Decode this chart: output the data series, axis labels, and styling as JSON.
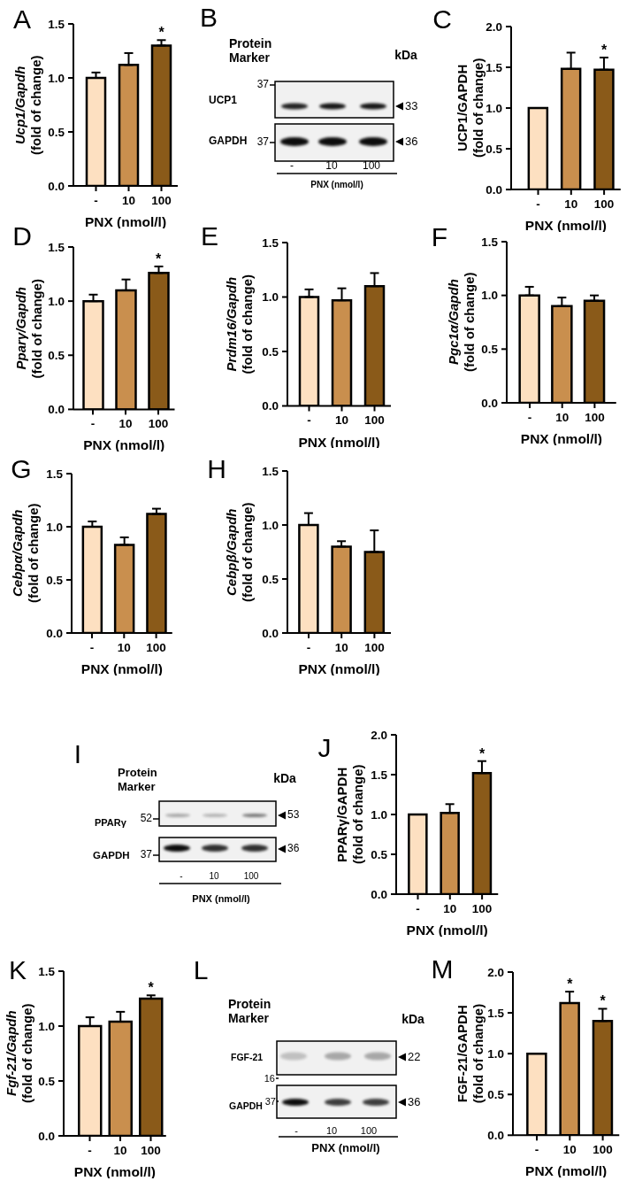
{
  "chart_data": [
    {
      "type": "bar",
      "title": "A",
      "categories": [
        "-",
        "10",
        "100"
      ],
      "values": [
        1.0,
        1.12,
        1.3
      ],
      "colors": [
        "#fde0c1",
        "#c98f4e",
        "#8a5a19"
      ],
      "errors": [
        [
          1.0,
          1.05
        ],
        [
          1.12,
          1.23
        ],
        [
          1.3,
          1.35
        ]
      ],
      "ylabel": "Ucp1/Gapdh\n(fold of change)",
      "xlabel": "PNX (nmol/l)",
      "ylim": [
        0,
        1.5
      ],
      "yticks": [
        {
          "value": 0,
          "label": "0.0"
        },
        {
          "value": 0.5,
          "label": "0.5"
        },
        {
          "value": 1,
          "label": "1.0"
        },
        {
          "value": 1.5,
          "label": "1.5"
        }
      ],
      "annotations": [
        {
          "text": "*",
          "x": "100",
          "y": 1.35
        }
      ]
    },
    {
      "type": "other",
      "title": "B",
      "categories": [
        "-",
        "10",
        "100"
      ],
      "xlabel": "PNX (nmol/l)",
      "annotations": [
        "Protein Marker",
        "kDa",
        "UCP1",
        "GAPDH",
        "37",
        "37",
        "33",
        "36"
      ]
    },
    {
      "type": "bar",
      "title": "C",
      "categories": [
        "-",
        "10",
        "100"
      ],
      "values": [
        1.0,
        1.48,
        1.47
      ],
      "colors": [
        "#fde0c1",
        "#c98f4e",
        "#8a5a19"
      ],
      "errors": [
        null,
        [
          1.48,
          1.68
        ],
        [
          1.47,
          1.62
        ]
      ],
      "ylabel": "UCP1/GAPDH\n(fold of change)",
      "xlabel": "PNX (nmol/l)",
      "ylim": [
        0,
        2
      ],
      "yticks": [
        {
          "value": 0,
          "label": "0.0"
        },
        {
          "value": 0.5,
          "label": "0.5"
        },
        {
          "value": 1,
          "label": "1.0"
        },
        {
          "value": 1.5,
          "label": "1.5"
        },
        {
          "value": 2,
          "label": "2.0"
        }
      ],
      "annotations": [
        {
          "text": "*",
          "x": "100",
          "y": 1.62
        }
      ]
    },
    {
      "type": "bar",
      "title": "D",
      "categories": [
        "-",
        "10",
        "100"
      ],
      "values": [
        1.0,
        1.1,
        1.26
      ],
      "colors": [
        "#fde0c1",
        "#c98f4e",
        "#8a5a19"
      ],
      "errors": [
        [
          1.0,
          1.06
        ],
        [
          1.1,
          1.2
        ],
        [
          1.26,
          1.32
        ]
      ],
      "ylabel": "Pparγ/Gapdh\n(fold of change)",
      "xlabel": "PNX (nmol/l)",
      "ylim": [
        0,
        1.5
      ],
      "yticks": [
        {
          "value": 0,
          "label": "0.0"
        },
        {
          "value": 0.5,
          "label": "0.5"
        },
        {
          "value": 1,
          "label": "1.0"
        },
        {
          "value": 1.5,
          "label": "1.5"
        }
      ],
      "annotations": [
        {
          "text": "*",
          "x": "100",
          "y": 1.32
        }
      ]
    },
    {
      "type": "bar",
      "title": "E",
      "categories": [
        "-",
        "10",
        "100"
      ],
      "values": [
        1.0,
        0.97,
        1.1
      ],
      "colors": [
        "#fde0c1",
        "#c98f4e",
        "#8a5a19"
      ],
      "errors": [
        [
          1.0,
          1.07
        ],
        [
          0.97,
          1.08
        ],
        [
          1.1,
          1.22
        ]
      ],
      "ylabel": "Prdm16/Gapdh\n(fold of change)",
      "xlabel": "PNX (nmol/l)",
      "ylim": [
        0,
        1.5
      ],
      "yticks": [
        {
          "value": 0,
          "label": "0.0"
        },
        {
          "value": 0.5,
          "label": "0.5"
        },
        {
          "value": 1,
          "label": "1.0"
        },
        {
          "value": 1.5,
          "label": "1.5"
        }
      ]
    },
    {
      "type": "bar",
      "title": "F",
      "categories": [
        "-",
        "10",
        "100"
      ],
      "values": [
        1.0,
        0.9,
        0.95
      ],
      "colors": [
        "#fde0c1",
        "#c98f4e",
        "#8a5a19"
      ],
      "errors": [
        [
          1.0,
          1.08
        ],
        [
          0.9,
          0.98
        ],
        [
          0.95,
          1.0
        ]
      ],
      "ylabel": "Pgc1α/Gapdh\n(fold of change)",
      "xlabel": "PNX (nmol/l)",
      "ylim": [
        0,
        1.5
      ],
      "yticks": [
        {
          "value": 0,
          "label": "0.0"
        },
        {
          "value": 0.5,
          "label": "0.5"
        },
        {
          "value": 1,
          "label": "1.0"
        },
        {
          "value": 1.5,
          "label": "1.5"
        }
      ]
    },
    {
      "type": "bar",
      "title": "G",
      "categories": [
        "-",
        "10",
        "100"
      ],
      "values": [
        1.0,
        0.83,
        1.12
      ],
      "colors": [
        "#fde0c1",
        "#c98f4e",
        "#8a5a19"
      ],
      "errors": [
        [
          1.0,
          1.05
        ],
        [
          0.83,
          0.9
        ],
        [
          1.12,
          1.17
        ]
      ],
      "ylabel": "Cebpα/Gapdh\n(fold of change)",
      "xlabel": "PNX (nmol/l)",
      "ylim": [
        0,
        1.5
      ],
      "yticks": [
        {
          "value": 0,
          "label": "0.0"
        },
        {
          "value": 0.5,
          "label": "0.5"
        },
        {
          "value": 1,
          "label": "1.0"
        },
        {
          "value": 1.5,
          "label": "1.5"
        }
      ]
    },
    {
      "type": "bar",
      "title": "H",
      "categories": [
        "-",
        "10",
        "100"
      ],
      "values": [
        1.0,
        0.8,
        0.75
      ],
      "colors": [
        "#fde0c1",
        "#c98f4e",
        "#8a5a19"
      ],
      "errors": [
        [
          1.0,
          1.11
        ],
        [
          0.8,
          0.85
        ],
        [
          0.75,
          0.95
        ]
      ],
      "ylabel": "Cebpβ/Gapdh\n(fold of change)",
      "xlabel": "PNX (nmol/l)",
      "ylim": [
        0,
        1.5
      ],
      "yticks": [
        {
          "value": 0,
          "label": "0.0"
        },
        {
          "value": 0.5,
          "label": "0.5"
        },
        {
          "value": 1,
          "label": "1.0"
        },
        {
          "value": 1.5,
          "label": "1.5"
        }
      ]
    },
    {
      "type": "other",
      "title": "I",
      "categories": [
        "-",
        "10",
        "100"
      ],
      "xlabel": "PNX (nmol/l)",
      "annotations": [
        "Protein Marker",
        "kDa",
        "PPARγ",
        "GAPDH",
        "52",
        "37",
        "53",
        "36"
      ]
    },
    {
      "type": "bar",
      "title": "J",
      "categories": [
        "-",
        "10",
        "100"
      ],
      "values": [
        1.0,
        1.02,
        1.52
      ],
      "colors": [
        "#fde0c1",
        "#c98f4e",
        "#8a5a19"
      ],
      "errors": [
        null,
        [
          1.02,
          1.13
        ],
        [
          1.52,
          1.67
        ]
      ],
      "ylabel": "PPARγ/GAPDH\n(fold of change)",
      "xlabel": "PNX (nmol/l)",
      "ylim": [
        0,
        2
      ],
      "yticks": [
        {
          "value": 0,
          "label": "0.0"
        },
        {
          "value": 0.5,
          "label": "0.5"
        },
        {
          "value": 1,
          "label": "1.0"
        },
        {
          "value": 1.5,
          "label": "1.5"
        },
        {
          "value": 2,
          "label": "2.0"
        }
      ],
      "annotations": [
        {
          "text": "*",
          "x": "100",
          "y": 1.67
        }
      ]
    },
    {
      "type": "bar",
      "title": "K",
      "categories": [
        "-",
        "10",
        "100"
      ],
      "values": [
        1.0,
        1.04,
        1.25
      ],
      "colors": [
        "#fde0c1",
        "#c98f4e",
        "#8a5a19"
      ],
      "errors": [
        [
          1.0,
          1.08
        ],
        [
          1.04,
          1.13
        ],
        [
          1.25,
          1.28
        ]
      ],
      "ylabel": "Fgf-21/Gapdh\n(fold of change)",
      "xlabel": "PNX (nmol/l)",
      "ylim": [
        0,
        1.5
      ],
      "yticks": [
        {
          "value": 0,
          "label": "0.0"
        },
        {
          "value": 0.5,
          "label": "0.5"
        },
        {
          "value": 1,
          "label": "1.0"
        },
        {
          "value": 1.5,
          "label": "1.5"
        }
      ],
      "annotations": [
        {
          "text": "*",
          "x": "100",
          "y": 1.28
        }
      ]
    },
    {
      "type": "other",
      "title": "L",
      "categories": [
        "-",
        "10",
        "100"
      ],
      "xlabel": "PNX (nmol/l)",
      "annotations": [
        "Protein Marker",
        "kDa",
        "FGF-21",
        "GAPDH",
        "16",
        "37",
        "22",
        "36"
      ]
    },
    {
      "type": "bar",
      "title": "M",
      "categories": [
        "-",
        "10",
        "100"
      ],
      "values": [
        1.0,
        1.62,
        1.4
      ],
      "colors": [
        "#fde0c1",
        "#c98f4e",
        "#8a5a19"
      ],
      "errors": [
        null,
        [
          1.62,
          1.76
        ],
        [
          1.4,
          1.55
        ]
      ],
      "ylabel": "FGF-21/GAPDH\n(fold of change)",
      "xlabel": "PNX (nmol/l)",
      "ylim": [
        0,
        2
      ],
      "yticks": [
        {
          "value": 0,
          "label": "0.0"
        },
        {
          "value": 0.5,
          "label": "0.5"
        },
        {
          "value": 1,
          "label": "1.0"
        },
        {
          "value": 1.5,
          "label": "1.5"
        },
        {
          "value": 2,
          "label": "2.0"
        }
      ],
      "annotations": [
        {
          "text": "*",
          "x": "10",
          "y": 1.76
        },
        {
          "text": "*",
          "x": "100",
          "y": 1.55
        }
      ]
    }
  ]
}
